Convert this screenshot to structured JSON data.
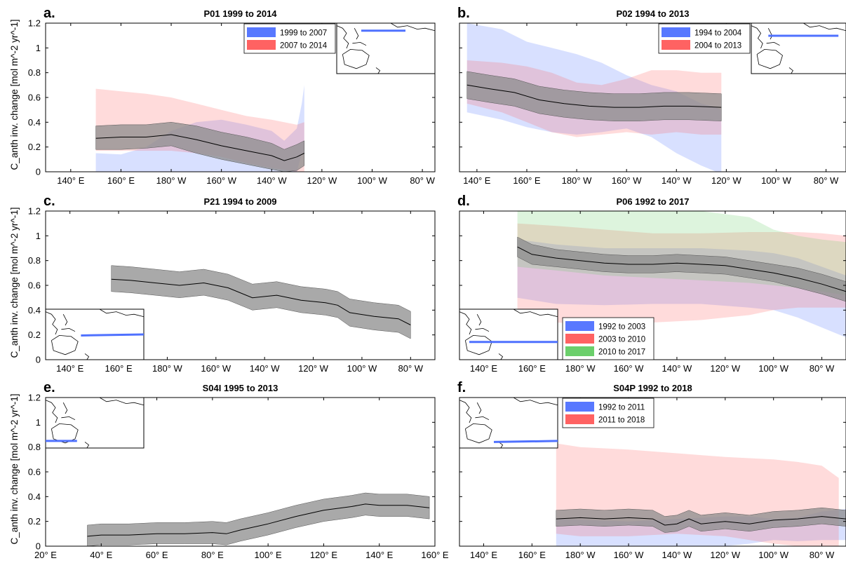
{
  "colors": {
    "blue": "#4f71ff",
    "red": "#ff5a5a",
    "green": "#63cc63",
    "gray": "#8c8c8c",
    "mean": "#000000"
  },
  "chart_data": [
    {
      "type": "area",
      "panel": "a.",
      "title": "P01 1999 to 2014",
      "ylabel": "C_anth inv. change [mol m^-2 yr^-1]",
      "xlim": [
        130,
        285
      ],
      "ylim": [
        0,
        1.2
      ],
      "yticks": [
        0,
        0.2,
        0.4,
        0.6,
        0.8,
        1,
        1.2
      ],
      "yticklabels": [
        "0",
        "0.2",
        "0.4",
        "0.6",
        "0.8",
        "1",
        "1.2"
      ],
      "xticks": [
        140,
        160,
        180,
        200,
        220,
        240,
        260,
        280
      ],
      "xticklabels": [
        "140° E",
        "160° E",
        "180° W",
        "160° W",
        "140° W",
        "120° W",
        "100° W",
        "80° W"
      ],
      "legend": [
        "1999 to 2007",
        "2007 to 2014"
      ],
      "legend_position": "top-right",
      "inset_map": "top-right",
      "series": [
        {
          "color": "blue",
          "x": [
            150,
            160,
            170,
            180,
            190,
            200,
            210,
            220,
            225,
            230,
            232,
            233
          ],
          "lower": [
            0,
            0,
            0,
            0,
            0,
            0,
            0,
            0,
            0,
            0,
            0.15,
            0.15
          ],
          "upper": [
            0.15,
            0.14,
            0.2,
            0.33,
            0.4,
            0.42,
            0.38,
            0.33,
            0.25,
            0.35,
            0.55,
            0.7
          ]
        },
        {
          "color": "red",
          "x": [
            150,
            160,
            170,
            180,
            190,
            200,
            210,
            220,
            230,
            233
          ],
          "lower": [
            0.17,
            0.17,
            0.17,
            0.17,
            0.15,
            0.12,
            0.07,
            0.03,
            0,
            0
          ],
          "upper": [
            0.67,
            0.65,
            0.63,
            0.6,
            0.55,
            0.5,
            0.45,
            0.42,
            0.38,
            0.4
          ]
        },
        {
          "color": "gray",
          "x": [
            150,
            160,
            170,
            180,
            190,
            200,
            210,
            220,
            225,
            230,
            233
          ],
          "mean": [
            0.27,
            0.28,
            0.28,
            0.3,
            0.26,
            0.21,
            0.17,
            0.13,
            0.09,
            0.12,
            0.15
          ],
          "lower": [
            0.18,
            0.18,
            0.19,
            0.21,
            0.15,
            0.1,
            0.06,
            0.02,
            0,
            0.01,
            0.05
          ],
          "upper": [
            0.37,
            0.38,
            0.38,
            0.4,
            0.37,
            0.32,
            0.28,
            0.23,
            0.18,
            0.22,
            0.25
          ]
        }
      ]
    },
    {
      "type": "area",
      "panel": "b.",
      "title": "P02 1994 to 2013",
      "xlim": [
        133,
        288
      ],
      "ylim": [
        0,
        1.2
      ],
      "xticks": [
        140,
        160,
        180,
        200,
        220,
        240,
        260,
        280
      ],
      "xticklabels": [
        "140° E",
        "160° E",
        "180° W",
        "160° W",
        "140° W",
        "120° W",
        "100° W",
        "80° W"
      ],
      "legend": [
        "1994 to 2004",
        "2004 to 2013"
      ],
      "legend_position": "top-right",
      "inset_map": "top-right",
      "series": [
        {
          "color": "blue",
          "x": [
            136,
            150,
            160,
            170,
            180,
            190,
            200,
            210,
            220,
            230,
            236,
            238
          ],
          "lower": [
            0.48,
            0.42,
            0.36,
            0.32,
            0.3,
            0.32,
            0.35,
            0.28,
            0.15,
            0.05,
            0,
            0
          ],
          "upper": [
            1.2,
            1.15,
            1.05,
            1.0,
            0.95,
            0.88,
            0.78,
            0.7,
            0.65,
            0.55,
            0.52,
            0.5
          ]
        },
        {
          "color": "red",
          "x": [
            136,
            150,
            160,
            170,
            180,
            190,
            200,
            210,
            220,
            230,
            238
          ],
          "lower": [
            0.55,
            0.48,
            0.4,
            0.32,
            0.28,
            0.3,
            0.32,
            0.3,
            0.32,
            0.3,
            0.3
          ],
          "upper": [
            0.9,
            0.88,
            0.85,
            0.8,
            0.72,
            0.7,
            0.75,
            0.82,
            0.82,
            0.8,
            0.8
          ]
        },
        {
          "color": "gray",
          "x": [
            136,
            145,
            155,
            165,
            175,
            185,
            195,
            205,
            215,
            225,
            238
          ],
          "mean": [
            0.7,
            0.67,
            0.64,
            0.58,
            0.55,
            0.53,
            0.52,
            0.52,
            0.53,
            0.53,
            0.52
          ],
          "lower": [
            0.59,
            0.56,
            0.53,
            0.47,
            0.44,
            0.42,
            0.41,
            0.41,
            0.42,
            0.42,
            0.41
          ],
          "upper": [
            0.81,
            0.78,
            0.75,
            0.69,
            0.66,
            0.64,
            0.63,
            0.63,
            0.64,
            0.64,
            0.63
          ]
        }
      ]
    },
    {
      "type": "area",
      "panel": "c.",
      "title": "P21 1994 to 2009",
      "ylabel": "C_anth inv. change [mol m^-2 yr^-1]",
      "xlim": [
        130,
        290
      ],
      "ylim": [
        0,
        1.2
      ],
      "yticks": [
        0,
        0.2,
        0.4,
        0.6,
        0.8,
        1,
        1.2
      ],
      "yticklabels": [
        "0",
        "0.2",
        "0.4",
        "0.6",
        "0.8",
        "1",
        "1.2"
      ],
      "xticks": [
        140,
        160,
        180,
        200,
        220,
        240,
        260,
        280
      ],
      "xticklabels": [
        "140° E",
        "160° E",
        "180° W",
        "160° W",
        "140° W",
        "120° W",
        "100° W",
        "80° W"
      ],
      "inset_map": "bottom-left",
      "series": [
        {
          "color": "gray",
          "x": [
            157,
            165,
            175,
            185,
            195,
            205,
            215,
            225,
            235,
            245,
            250,
            255,
            265,
            275,
            280
          ],
          "mean": [
            0.65,
            0.64,
            0.62,
            0.6,
            0.62,
            0.58,
            0.5,
            0.52,
            0.48,
            0.46,
            0.44,
            0.38,
            0.35,
            0.33,
            0.28
          ],
          "lower": [
            0.55,
            0.54,
            0.52,
            0.5,
            0.52,
            0.48,
            0.4,
            0.42,
            0.38,
            0.36,
            0.34,
            0.27,
            0.24,
            0.22,
            0.17
          ],
          "upper": [
            0.76,
            0.75,
            0.73,
            0.71,
            0.73,
            0.69,
            0.61,
            0.63,
            0.59,
            0.57,
            0.55,
            0.49,
            0.46,
            0.44,
            0.39
          ]
        }
      ]
    },
    {
      "type": "area",
      "panel": "d.",
      "title": "P06 1992 to 2017",
      "xlim": [
        130,
        290
      ],
      "ylim": [
        0,
        1.2
      ],
      "xticks": [
        140,
        160,
        180,
        200,
        220,
        240,
        260,
        280
      ],
      "xticklabels": [
        "140° E",
        "160° E",
        "180° W",
        "160° W",
        "140° W",
        "120° W",
        "100° W",
        "80° W"
      ],
      "legend": [
        "1992 to 2003",
        "2003 to 2010",
        "2010 to 2017"
      ],
      "legend_position": "bottom-left",
      "inset_map": "bottom-left",
      "series": [
        {
          "color": "blue",
          "x": [
            154,
            170,
            190,
            210,
            230,
            250,
            260,
            270,
            280,
            290
          ],
          "lower": [
            0.5,
            0.45,
            0.44,
            0.45,
            0.45,
            0.42,
            0.4,
            0.34,
            0.26,
            0.18
          ],
          "upper": [
            0.97,
            0.93,
            0.9,
            0.9,
            0.9,
            0.88,
            0.86,
            0.82,
            0.75,
            0.68
          ]
        },
        {
          "color": "red",
          "x": [
            154,
            170,
            190,
            210,
            230,
            250,
            260,
            270,
            280,
            290
          ],
          "lower": [
            0.38,
            0.3,
            0.28,
            0.3,
            0.32,
            0.36,
            0.4,
            0.42,
            0.42,
            0.42
          ],
          "upper": [
            1.1,
            1.08,
            1.05,
            1.02,
            1.02,
            1.03,
            1.03,
            1.03,
            1.02,
            1.0
          ]
        },
        {
          "color": "green",
          "x": [
            154,
            170,
            190,
            210,
            230,
            250,
            260,
            270,
            280,
            290
          ],
          "lower": [
            0.75,
            0.72,
            0.68,
            0.66,
            0.64,
            0.62,
            0.6,
            0.58,
            0.55,
            0.52
          ],
          "upper": [
            1.22,
            1.2,
            1.2,
            1.2,
            1.2,
            1.15,
            1.05,
            1.0,
            0.97,
            0.95
          ]
        },
        {
          "color": "gray",
          "x": [
            154,
            160,
            170,
            180,
            190,
            200,
            210,
            220,
            230,
            240,
            250,
            260,
            270,
            280,
            290
          ],
          "mean": [
            0.91,
            0.85,
            0.82,
            0.8,
            0.78,
            0.77,
            0.77,
            0.78,
            0.77,
            0.76,
            0.73,
            0.7,
            0.66,
            0.61,
            0.55
          ],
          "lower": [
            0.83,
            0.77,
            0.75,
            0.73,
            0.71,
            0.7,
            0.7,
            0.71,
            0.7,
            0.69,
            0.66,
            0.63,
            0.58,
            0.53,
            0.47
          ],
          "upper": [
            0.99,
            0.93,
            0.89,
            0.87,
            0.85,
            0.84,
            0.84,
            0.85,
            0.84,
            0.83,
            0.8,
            0.77,
            0.74,
            0.69,
            0.63
          ]
        }
      ]
    },
    {
      "type": "area",
      "panel": "e.",
      "title": "S04I 1995 to 2013",
      "ylabel": "C_anth inv. change [mol m^-2 yr^-1]",
      "xlim": [
        20,
        160
      ],
      "ylim": [
        0,
        1.2
      ],
      "yticks": [
        0,
        0.2,
        0.4,
        0.6,
        0.8,
        1,
        1.2
      ],
      "yticklabels": [
        "0",
        "0.2",
        "0.4",
        "0.6",
        "0.8",
        "1",
        "1.2"
      ],
      "xticks": [
        20,
        40,
        60,
        80,
        100,
        120,
        140,
        160
      ],
      "xticklabels": [
        "20° E",
        "40° E",
        "60° E",
        "80° E",
        "100° E",
        "120° E",
        "140° E",
        "160° E"
      ],
      "inset_map": "top-left",
      "series": [
        {
          "color": "gray",
          "x": [
            35,
            40,
            50,
            60,
            70,
            80,
            85,
            90,
            100,
            110,
            120,
            130,
            135,
            140,
            150,
            158
          ],
          "mean": [
            0.08,
            0.09,
            0.09,
            0.1,
            0.1,
            0.11,
            0.1,
            0.13,
            0.18,
            0.24,
            0.29,
            0.32,
            0.34,
            0.33,
            0.33,
            0.31
          ],
          "lower": [
            0,
            0.01,
            0.01,
            0.02,
            0.02,
            0.02,
            0.01,
            0.04,
            0.09,
            0.15,
            0.2,
            0.23,
            0.25,
            0.24,
            0.24,
            0.22
          ],
          "upper": [
            0.17,
            0.18,
            0.18,
            0.19,
            0.19,
            0.2,
            0.19,
            0.22,
            0.27,
            0.33,
            0.38,
            0.41,
            0.43,
            0.42,
            0.42,
            0.4
          ]
        }
      ]
    },
    {
      "type": "area",
      "panel": "f.",
      "title": "S04P 1992 to 2018",
      "xlim": [
        130,
        290
      ],
      "ylim": [
        0,
        1.2
      ],
      "xticks": [
        140,
        160,
        180,
        200,
        220,
        240,
        260,
        280
      ],
      "xticklabels": [
        "140° E",
        "160° E",
        "180° W",
        "160° W",
        "140° W",
        "120° W",
        "100° W",
        "80° W"
      ],
      "legend": [
        "1992 to 2011",
        "2011 to 2018"
      ],
      "legend_position": "top-left",
      "inset_map": "top-left",
      "series": [
        {
          "color": "blue",
          "x": [
            170,
            200,
            220,
            240,
            250,
            260,
            270,
            280,
            290
          ],
          "lower": [
            0,
            0,
            0,
            0,
            0.02,
            0.05,
            0.04,
            0.05,
            0.05
          ],
          "upper": [
            0.22,
            0.2,
            0.22,
            0.24,
            0.24,
            0.22,
            0.23,
            0.28,
            0.3
          ]
        },
        {
          "color": "red",
          "x": [
            170,
            180,
            200,
            220,
            240,
            260,
            270,
            280,
            287
          ],
          "lower": [
            0.1,
            0.08,
            0.08,
            0.1,
            0.08,
            0.02,
            0,
            0,
            0
          ],
          "upper": [
            0.83,
            0.8,
            0.78,
            0.75,
            0.72,
            0.7,
            0.68,
            0.65,
            0.55
          ]
        },
        {
          "color": "gray",
          "x": [
            170,
            180,
            190,
            200,
            210,
            215,
            220,
            225,
            230,
            240,
            250,
            260,
            270,
            280,
            290
          ],
          "mean": [
            0.22,
            0.23,
            0.22,
            0.23,
            0.22,
            0.17,
            0.18,
            0.22,
            0.18,
            0.2,
            0.18,
            0.21,
            0.22,
            0.24,
            0.22
          ],
          "lower": [
            0.16,
            0.17,
            0.16,
            0.17,
            0.16,
            0.11,
            0.12,
            0.16,
            0.12,
            0.14,
            0.12,
            0.15,
            0.16,
            0.18,
            0.16
          ],
          "upper": [
            0.29,
            0.3,
            0.29,
            0.3,
            0.29,
            0.24,
            0.25,
            0.29,
            0.25,
            0.27,
            0.25,
            0.28,
            0.29,
            0.31,
            0.29
          ]
        }
      ]
    }
  ]
}
